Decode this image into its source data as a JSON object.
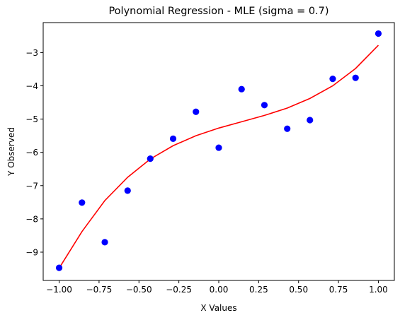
{
  "chart_data": {
    "type": "scatter",
    "title": "Polynomial Regression - MLE (sigma = 0.7)",
    "xlabel": "X Values",
    "ylabel": "Y Observed",
    "xlim": [
      -1.1,
      1.1
    ],
    "ylim": [
      -9.85,
      -2.1
    ],
    "xticks": [
      -1.0,
      -0.75,
      -0.5,
      -0.25,
      0.0,
      0.25,
      0.5,
      0.75,
      1.0
    ],
    "xtick_labels": [
      "−1.00",
      "−0.75",
      "−0.50",
      "−0.25",
      "0.00",
      "0.25",
      "0.50",
      "0.75",
      "1.00"
    ],
    "yticks": [
      -9,
      -8,
      -7,
      -6,
      -5,
      -4,
      -3
    ],
    "ytick_labels": [
      "−9",
      "−8",
      "−7",
      "−6",
      "−5",
      "−4",
      "−3"
    ],
    "grid": false,
    "series": [
      {
        "type": "scatter",
        "color": "#0000ff",
        "x": [
          -1.0,
          -0.857,
          -0.714,
          -0.571,
          -0.429,
          -0.286,
          -0.143,
          0.0,
          0.143,
          0.286,
          0.429,
          0.571,
          0.714,
          0.857,
          1.0
        ],
        "y": [
          -9.47,
          -7.51,
          -8.7,
          -7.15,
          -6.19,
          -5.59,
          -4.78,
          -5.86,
          -4.1,
          -4.58,
          -5.29,
          -5.03,
          -3.79,
          -3.76,
          -2.43
        ]
      },
      {
        "type": "line",
        "color": "#ff0000",
        "x": [
          -1.0,
          -0.857,
          -0.714,
          -0.571,
          -0.429,
          -0.286,
          -0.143,
          0.0,
          0.143,
          0.286,
          0.429,
          0.571,
          0.714,
          0.857,
          1.0
        ],
        "y": [
          -9.48,
          -8.38,
          -7.45,
          -6.75,
          -6.2,
          -5.8,
          -5.5,
          -5.27,
          -5.08,
          -4.89,
          -4.67,
          -4.38,
          -4.0,
          -3.48,
          -2.78
        ]
      }
    ]
  }
}
